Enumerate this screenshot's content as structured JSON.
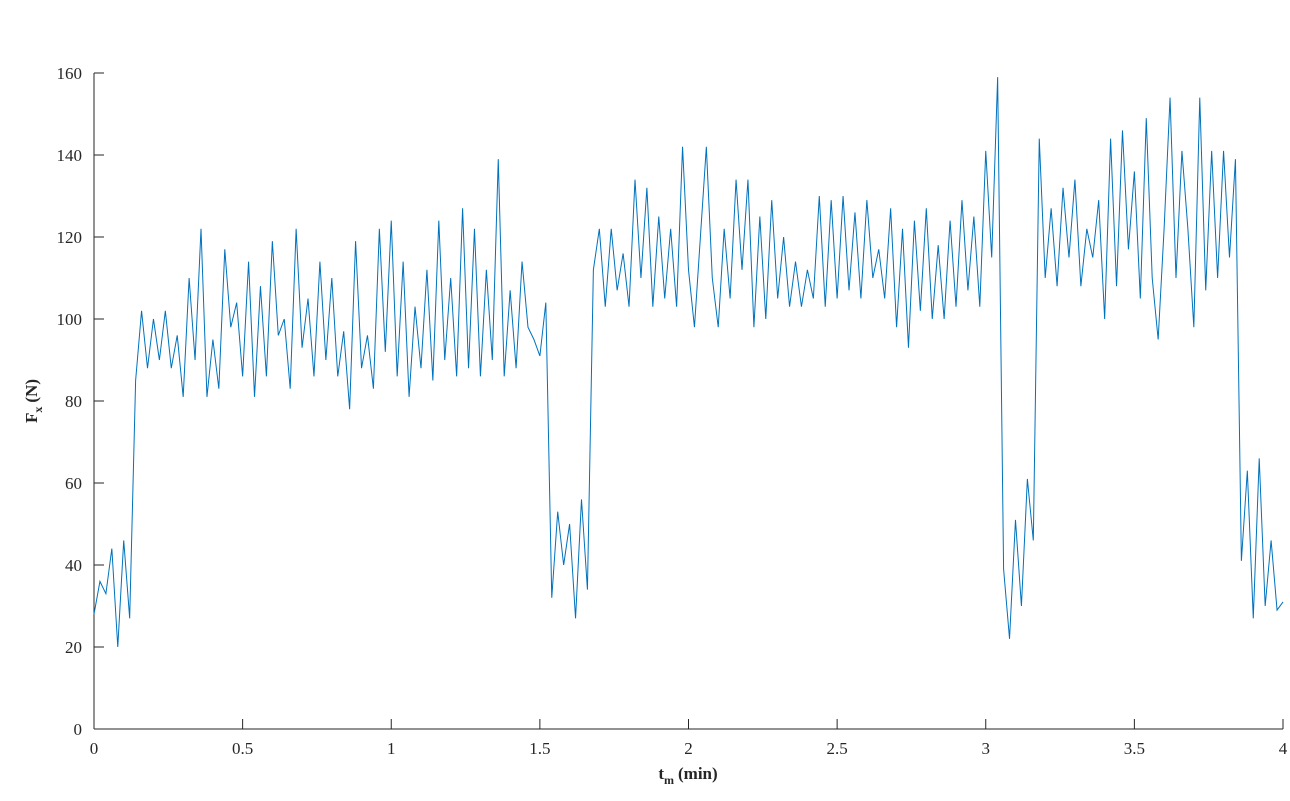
{
  "chart_data": {
    "type": "line",
    "xlabel": {
      "symbol": "t",
      "subscript": "m",
      "unit": "(min)"
    },
    "ylabel": {
      "symbol": "F",
      "subscript": "x",
      "unit": "(N)"
    },
    "xlim": [
      0,
      4
    ],
    "ylim": [
      0,
      160
    ],
    "xticks": [
      0,
      0.5,
      1,
      1.5,
      2,
      2.5,
      3,
      3.5,
      4
    ],
    "yticks": [
      0,
      20,
      40,
      60,
      80,
      100,
      120,
      140,
      160
    ],
    "grid": false,
    "x": [
      0,
      0.02,
      0.04,
      0.06,
      0.08,
      0.1,
      0.12,
      0.14,
      0.16,
      0.18,
      0.2,
      0.22,
      0.24,
      0.26,
      0.28,
      0.3,
      0.32,
      0.34,
      0.36,
      0.38,
      0.4,
      0.42,
      0.44,
      0.46,
      0.48,
      0.5,
      0.52,
      0.54,
      0.56,
      0.58,
      0.6,
      0.62,
      0.64,
      0.66,
      0.68,
      0.7,
      0.72,
      0.74,
      0.76,
      0.78,
      0.8,
      0.82,
      0.84,
      0.86,
      0.88,
      0.9,
      0.92,
      0.94,
      0.96,
      0.98,
      1,
      1.02,
      1.04,
      1.06,
      1.08,
      1.1,
      1.12,
      1.14,
      1.16,
      1.18,
      1.2,
      1.22,
      1.24,
      1.26,
      1.28,
      1.3,
      1.32,
      1.34,
      1.36,
      1.38,
      1.4,
      1.42,
      1.44,
      1.46,
      1.48,
      1.5,
      1.52,
      1.54,
      1.56,
      1.58,
      1.6,
      1.62,
      1.64,
      1.66,
      1.68,
      1.7,
      1.72,
      1.74,
      1.76,
      1.78,
      1.8,
      1.82,
      1.84,
      1.86,
      1.88,
      1.9,
      1.92,
      1.94,
      1.96,
      1.98,
      2,
      2.02,
      2.04,
      2.06,
      2.08,
      2.1,
      2.12,
      2.14,
      2.16,
      2.18,
      2.2,
      2.22,
      2.24,
      2.26,
      2.28,
      2.3,
      2.32,
      2.34,
      2.36,
      2.38,
      2.4,
      2.42,
      2.44,
      2.46,
      2.48,
      2.5,
      2.52,
      2.54,
      2.56,
      2.58,
      2.6,
      2.62,
      2.64,
      2.66,
      2.68,
      2.7,
      2.72,
      2.74,
      2.76,
      2.78,
      2.8,
      2.82,
      2.84,
      2.86,
      2.88,
      2.9,
      2.92,
      2.94,
      2.96,
      2.98,
      3,
      3.02,
      3.04,
      3.06,
      3.08,
      3.1,
      3.12,
      3.14,
      3.16,
      3.18,
      3.2,
      3.22,
      3.24,
      3.26,
      3.28,
      3.3,
      3.32,
      3.34,
      3.36,
      3.38,
      3.4,
      3.42,
      3.44,
      3.46,
      3.48,
      3.5,
      3.52,
      3.54,
      3.56,
      3.58,
      3.6,
      3.62,
      3.64,
      3.66,
      3.68,
      3.7,
      3.72,
      3.74,
      3.76,
      3.78,
      3.8,
      3.82,
      3.84,
      3.86,
      3.88,
      3.9,
      3.92,
      3.94,
      3.96,
      3.98,
      4
    ],
    "series": [
      {
        "color": "#0072bd",
        "values": [
          28,
          36,
          33,
          44,
          20,
          46,
          27,
          85,
          102,
          88,
          100,
          90,
          102,
          88,
          96,
          81,
          110,
          90,
          122,
          81,
          95,
          83,
          117,
          98,
          104,
          86,
          114,
          81,
          108,
          86,
          119,
          96,
          100,
          83,
          122,
          93,
          105,
          86,
          114,
          90,
          110,
          86,
          97,
          78,
          119,
          88,
          96,
          83,
          122,
          92,
          124,
          86,
          114,
          81,
          103,
          88,
          112,
          85,
          124,
          90,
          110,
          86,
          127,
          88,
          122,
          86,
          112,
          90,
          139,
          86,
          107,
          88,
          114,
          98,
          95,
          91,
          104,
          32,
          53,
          40,
          50,
          27,
          56,
          34,
          112,
          122,
          103,
          122,
          107,
          116,
          103,
          134,
          110,
          132,
          103,
          125,
          105,
          122,
          103,
          142,
          112,
          98,
          120,
          142,
          110,
          98,
          122,
          105,
          134,
          112,
          134,
          98,
          125,
          100,
          129,
          105,
          120,
          103,
          114,
          103,
          112,
          105,
          130,
          103,
          129,
          105,
          130,
          107,
          126,
          105,
          129,
          110,
          117,
          105,
          127,
          98,
          122,
          93,
          124,
          102,
          127,
          100,
          118,
          100,
          124,
          103,
          129,
          107,
          125,
          103,
          141,
          115,
          159,
          39,
          22,
          51,
          30,
          61,
          46,
          144,
          110,
          127,
          108,
          132,
          115,
          134,
          108,
          122,
          115,
          129,
          100,
          144,
          108,
          146,
          117,
          136,
          105,
          149,
          110,
          95,
          122,
          154,
          110,
          141,
          122,
          98,
          154,
          107,
          141,
          110,
          141,
          115,
          139,
          41,
          63,
          27,
          66,
          30,
          46,
          29,
          31
        ]
      }
    ]
  }
}
